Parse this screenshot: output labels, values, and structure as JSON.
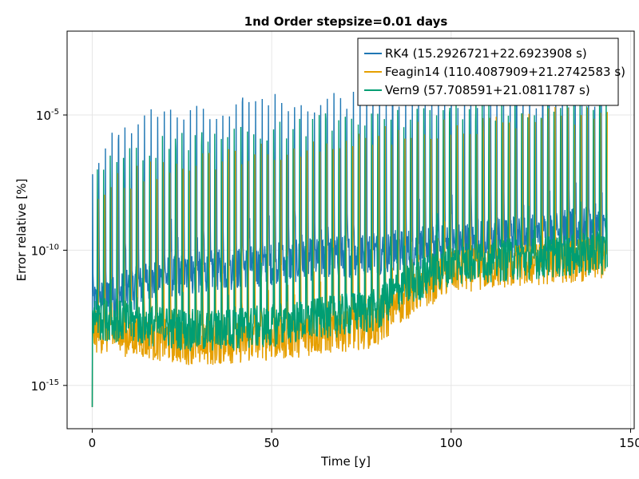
{
  "chart_data": {
    "type": "line",
    "title": "1nd Order stepsize=0.01 days",
    "xlabel": "Time [y]",
    "ylabel": "Error relative [%]",
    "x_ticks": [
      0,
      50,
      100,
      150
    ],
    "x_tick_labels": [
      "0",
      "50",
      "100",
      "150"
    ],
    "xlim": [
      -7,
      151
    ],
    "y_scale": "log",
    "y_ticks": [
      1e-15,
      1e-10,
      1e-05
    ],
    "y_tick_labels": [
      {
        "base": "10",
        "exp": "-15"
      },
      {
        "base": "10",
        "exp": "-10"
      },
      {
        "base": "10",
        "exp": "-5"
      }
    ],
    "ylim_log10": [
      -16.6,
      -1.9
    ],
    "grid": true,
    "legend_position": "top-right",
    "x_start": 0,
    "x_end": 143.5,
    "series": [
      {
        "name": "RK4 (15.2926721+22.6923908 s)",
        "color": "#1f77b4",
        "base_log10": [
          [
            0,
            -12
          ],
          [
            20,
            -11
          ],
          [
            50,
            -10.5
          ],
          [
            100,
            -9.8
          ],
          [
            143,
            -9.1
          ]
        ],
        "peak_log10": [
          [
            0,
            -7
          ],
          [
            3,
            -5.5
          ],
          [
            20,
            -4.5
          ],
          [
            40,
            -4.3
          ],
          [
            80,
            -4.0
          ],
          [
            143,
            -4.0
          ]
        ]
      },
      {
        "name": "Feagin14 (110.4087909+21.2742583 s)",
        "color": "#e69f00",
        "base_log10": [
          [
            0,
            -13
          ],
          [
            30,
            -13.5
          ],
          [
            50,
            -13.3
          ],
          [
            80,
            -12.8
          ],
          [
            85,
            -12.0
          ],
          [
            100,
            -10.8
          ],
          [
            143,
            -10.3
          ]
        ],
        "peak_log10": [
          [
            0,
            -7.5
          ],
          [
            20,
            -6.5
          ],
          [
            50,
            -6.0
          ],
          [
            100,
            -5.0
          ],
          [
            143,
            -4.5
          ]
        ]
      },
      {
        "name": "Vern9 (57.708591+21.0811787 s)",
        "color": "#009e73",
        "base_log10": [
          [
            0,
            -12.5
          ],
          [
            30,
            -13.0
          ],
          [
            50,
            -12.8
          ],
          [
            80,
            -12.2
          ],
          [
            85,
            -11.5
          ],
          [
            100,
            -10.5
          ],
          [
            143,
            -10.1
          ]
        ],
        "peak_log10": [
          [
            0,
            -7
          ],
          [
            10,
            -6
          ],
          [
            30,
            -5.5
          ],
          [
            60,
            -5.0
          ],
          [
            100,
            -4.5
          ],
          [
            143,
            -4.2
          ]
        ]
      }
    ]
  }
}
